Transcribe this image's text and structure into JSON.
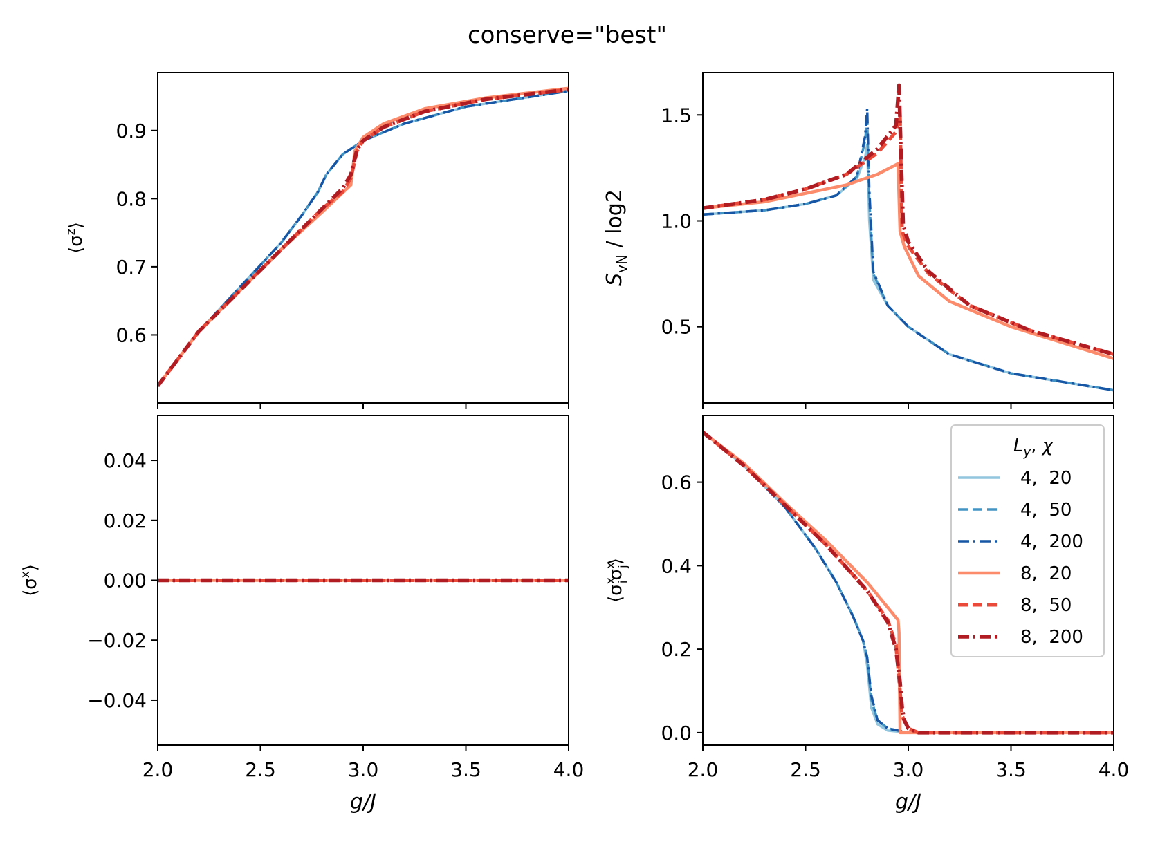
{
  "chart_data": {
    "type": "line",
    "title": "conserve=\"best\"",
    "colors": {
      "4, 20": "#92c5de",
      "4, 50": "#4393c3",
      "4, 200": "#1656a4",
      "8, 20": "#fb8b6b",
      "8, 50": "#ea4a3a",
      "8, 200": "#b01c22"
    },
    "legend": {
      "title_parts": [
        "L",
        "y",
        ", ",
        "χ"
      ],
      "placement": "inside, upper-right of bottom-right panel",
      "entries": [
        {
          "label": "4,  20",
          "key": "4, 20",
          "dash": "solid"
        },
        {
          "label": "4,  50",
          "key": "4, 50",
          "dash": "dashed"
        },
        {
          "label": "4,  200",
          "key": "4, 200",
          "dash": "dashdot"
        },
        {
          "label": "8,  20",
          "key": "8, 20",
          "dash": "solid"
        },
        {
          "label": "8,  50",
          "key": "8, 50",
          "dash": "dashed"
        },
        {
          "label": "8,  200",
          "key": "8, 200",
          "dash": "dashdot"
        }
      ]
    },
    "panels": [
      {
        "id": "sz",
        "ylabel_parts": [
          "⟨σ",
          "z",
          "⟩"
        ],
        "xlabel": "",
        "xlim": [
          2.0,
          4.0
        ],
        "ylim": [
          0.5,
          0.985
        ],
        "xticks": [
          2.0,
          2.5,
          3.0,
          3.5,
          4.0
        ],
        "xticklabels": [],
        "yticks": [
          0.6,
          0.7,
          0.8,
          0.9
        ],
        "yticklabels": [
          "0.6",
          "0.7",
          "0.8",
          "0.9"
        ],
        "series": [
          {
            "key": "4, 20",
            "x": [
              2.0,
              2.2,
              2.4,
              2.6,
              2.7,
              2.78,
              2.82,
              2.9,
              3.0,
              3.2,
              3.5,
              4.0
            ],
            "y": [
              0.525,
              0.605,
              0.67,
              0.735,
              0.775,
              0.81,
              0.835,
              0.865,
              0.885,
              0.91,
              0.935,
              0.958
            ]
          },
          {
            "key": "4, 50",
            "x": [
              2.0,
              2.2,
              2.4,
              2.6,
              2.7,
              2.78,
              2.82,
              2.9,
              3.0,
              3.2,
              3.5,
              4.0
            ],
            "y": [
              0.525,
              0.605,
              0.67,
              0.735,
              0.775,
              0.81,
              0.835,
              0.865,
              0.885,
              0.91,
              0.935,
              0.958
            ]
          },
          {
            "key": "4, 200",
            "x": [
              2.0,
              2.2,
              2.4,
              2.6,
              2.7,
              2.78,
              2.82,
              2.9,
              3.0,
              3.2,
              3.5,
              4.0
            ],
            "y": [
              0.525,
              0.605,
              0.67,
              0.735,
              0.775,
              0.81,
              0.835,
              0.865,
              0.885,
              0.91,
              0.935,
              0.958
            ]
          },
          {
            "key": "8, 20",
            "x": [
              2.0,
              2.2,
              2.4,
              2.6,
              2.8,
              2.94,
              2.96,
              3.0,
              3.1,
              3.3,
              3.6,
              4.0
            ],
            "y": [
              0.525,
              0.605,
              0.665,
              0.725,
              0.78,
              0.82,
              0.87,
              0.89,
              0.91,
              0.932,
              0.948,
              0.962
            ]
          },
          {
            "key": "8, 50",
            "x": [
              2.0,
              2.2,
              2.4,
              2.6,
              2.8,
              2.9,
              2.94,
              2.97,
              3.0,
              3.1,
              3.3,
              3.6,
              4.0
            ],
            "y": [
              0.525,
              0.605,
              0.665,
              0.725,
              0.785,
              0.81,
              0.83,
              0.87,
              0.885,
              0.905,
              0.928,
              0.946,
              0.96
            ]
          },
          {
            "key": "8, 200",
            "x": [
              2.0,
              2.2,
              2.4,
              2.6,
              2.8,
              2.9,
              2.94,
              2.97,
              3.0,
              3.1,
              3.3,
              3.6,
              4.0
            ],
            "y": [
              0.525,
              0.605,
              0.665,
              0.725,
              0.785,
              0.815,
              0.835,
              0.872,
              0.885,
              0.905,
              0.928,
              0.946,
              0.96
            ]
          }
        ]
      },
      {
        "id": "svn",
        "ylabel_parts": [
          "S",
          "vN",
          " / log2"
        ],
        "xlabel": "",
        "xlim": [
          2.0,
          4.0
        ],
        "ylim": [
          0.14,
          1.7
        ],
        "xticks": [
          2.0,
          2.5,
          3.0,
          3.5,
          4.0
        ],
        "xticklabels": [],
        "yticks": [
          0.5,
          1.0,
          1.5
        ],
        "yticklabels": [
          "0.5",
          "1.0",
          "1.5"
        ],
        "series": [
          {
            "key": "4, 20",
            "x": [
              2.0,
              2.3,
              2.5,
              2.65,
              2.75,
              2.79,
              2.8,
              2.81,
              2.83,
              2.9,
              3.0,
              3.2,
              3.5,
              4.0
            ],
            "y": [
              1.03,
              1.05,
              1.08,
              1.12,
              1.2,
              1.3,
              1.36,
              1.0,
              0.72,
              0.6,
              0.5,
              0.37,
              0.28,
              0.2
            ]
          },
          {
            "key": "4, 50",
            "x": [
              2.0,
              2.3,
              2.5,
              2.65,
              2.75,
              2.79,
              2.8,
              2.81,
              2.83,
              2.9,
              3.0,
              3.2,
              3.5,
              4.0
            ],
            "y": [
              1.03,
              1.05,
              1.08,
              1.12,
              1.21,
              1.38,
              1.48,
              1.1,
              0.75,
              0.6,
              0.5,
              0.37,
              0.28,
              0.2
            ]
          },
          {
            "key": "4, 200",
            "x": [
              2.0,
              2.3,
              2.5,
              2.65,
              2.75,
              2.79,
              2.8,
              2.81,
              2.83,
              2.9,
              3.0,
              3.2,
              3.5,
              4.0
            ],
            "y": [
              1.03,
              1.05,
              1.08,
              1.12,
              1.21,
              1.4,
              1.53,
              1.15,
              0.76,
              0.6,
              0.5,
              0.37,
              0.28,
              0.2
            ]
          },
          {
            "key": "8, 20",
            "x": [
              2.0,
              2.3,
              2.5,
              2.7,
              2.85,
              2.95,
              2.96,
              2.98,
              3.05,
              3.2,
              3.5,
              4.0
            ],
            "y": [
              1.06,
              1.09,
              1.13,
              1.17,
              1.22,
              1.27,
              0.95,
              0.88,
              0.74,
              0.62,
              0.5,
              0.35
            ]
          },
          {
            "key": "8, 50",
            "x": [
              2.0,
              2.3,
              2.5,
              2.7,
              2.85,
              2.94,
              2.96,
              2.97,
              3.0,
              3.1,
              3.3,
              3.6,
              4.0
            ],
            "y": [
              1.06,
              1.1,
              1.15,
              1.22,
              1.32,
              1.42,
              1.5,
              0.95,
              0.88,
              0.75,
              0.6,
              0.48,
              0.37
            ]
          },
          {
            "key": "8, 200",
            "x": [
              2.0,
              2.3,
              2.5,
              2.7,
              2.85,
              2.94,
              2.955,
              2.965,
              2.975,
              3.0,
              3.1,
              3.3,
              3.6,
              4.0
            ],
            "y": [
              1.06,
              1.1,
              1.15,
              1.22,
              1.34,
              1.45,
              1.64,
              1.3,
              0.98,
              0.9,
              0.76,
              0.6,
              0.48,
              0.37
            ]
          }
        ]
      },
      {
        "id": "sx",
        "ylabel_parts": [
          "⟨σ",
          "x",
          "⟩"
        ],
        "xlabel": "g/J",
        "xlim": [
          2.0,
          4.0
        ],
        "ylim": [
          -0.055,
          0.055
        ],
        "xticks": [
          2.0,
          2.5,
          3.0,
          3.5,
          4.0
        ],
        "xticklabels": [
          "2.0",
          "2.5",
          "3.0",
          "3.5",
          "4.0"
        ],
        "yticks": [
          -0.04,
          -0.02,
          0.0,
          0.02,
          0.04
        ],
        "yticklabels": [
          "−0.04",
          "−0.02",
          "0.00",
          "0.02",
          "0.04"
        ],
        "series": [
          {
            "key": "4, 20",
            "x": [
              2.0,
              4.0
            ],
            "y": [
              0.0,
              0.0
            ]
          },
          {
            "key": "4, 50",
            "x": [
              2.0,
              4.0
            ],
            "y": [
              0.0,
              0.0
            ]
          },
          {
            "key": "4, 200",
            "x": [
              2.0,
              4.0
            ],
            "y": [
              0.0,
              0.0
            ]
          },
          {
            "key": "8, 20",
            "x": [
              2.0,
              4.0
            ],
            "y": [
              0.0,
              0.0
            ]
          },
          {
            "key": "8, 50",
            "x": [
              2.0,
              4.0
            ],
            "y": [
              0.0,
              0.0
            ]
          },
          {
            "key": "8, 200",
            "x": [
              2.0,
              4.0
            ],
            "y": [
              0.0,
              0.0
            ]
          }
        ]
      },
      {
        "id": "corr",
        "ylabel_parts": [
          "⟨σ",
          "x",
          "i",
          "σ",
          "x",
          "j",
          "⟩"
        ],
        "xlabel": "g/J",
        "xlim": [
          2.0,
          4.0
        ],
        "ylim": [
          -0.03,
          0.76
        ],
        "xticks": [
          2.0,
          2.5,
          3.0,
          3.5,
          4.0
        ],
        "xticklabels": [
          "2.0",
          "2.5",
          "3.0",
          "3.5",
          "4.0"
        ],
        "yticks": [
          0.0,
          0.2,
          0.4,
          0.6
        ],
        "yticklabels": [
          "0.0",
          "0.2",
          "0.4",
          "0.6"
        ],
        "series": [
          {
            "key": "4, 20",
            "x": [
              2.0,
              2.2,
              2.4,
              2.55,
              2.65,
              2.73,
              2.78,
              2.8,
              2.82,
              2.85,
              2.9,
              3.0,
              4.0
            ],
            "y": [
              0.72,
              0.64,
              0.54,
              0.44,
              0.36,
              0.28,
              0.22,
              0.16,
              0.06,
              0.02,
              0.005,
              0.0,
              0.0
            ]
          },
          {
            "key": "4, 50",
            "x": [
              2.0,
              2.2,
              2.4,
              2.55,
              2.65,
              2.73,
              2.78,
              2.8,
              2.82,
              2.85,
              2.9,
              3.0,
              4.0
            ],
            "y": [
              0.72,
              0.64,
              0.54,
              0.44,
              0.36,
              0.28,
              0.22,
              0.18,
              0.08,
              0.03,
              0.01,
              0.0,
              0.0
            ]
          },
          {
            "key": "4, 200",
            "x": [
              2.0,
              2.2,
              2.4,
              2.55,
              2.65,
              2.73,
              2.78,
              2.8,
              2.82,
              2.85,
              2.9,
              3.0,
              4.0
            ],
            "y": [
              0.72,
              0.64,
              0.54,
              0.44,
              0.36,
              0.28,
              0.22,
              0.18,
              0.09,
              0.03,
              0.01,
              0.0,
              0.0
            ]
          },
          {
            "key": "8, 20",
            "x": [
              2.0,
              2.2,
              2.4,
              2.6,
              2.8,
              2.95,
              2.955,
              2.96,
              3.0,
              4.0
            ],
            "y": [
              0.72,
              0.645,
              0.55,
              0.46,
              0.36,
              0.27,
              0.24,
              0.0,
              0.0,
              0.0
            ]
          },
          {
            "key": "8, 50",
            "x": [
              2.0,
              2.2,
              2.4,
              2.6,
              2.8,
              2.9,
              2.94,
              2.96,
              2.97,
              3.0,
              3.05,
              4.0
            ],
            "y": [
              0.72,
              0.64,
              0.545,
              0.45,
              0.34,
              0.27,
              0.21,
              0.1,
              0.04,
              0.01,
              0.0,
              0.0
            ]
          },
          {
            "key": "8, 200",
            "x": [
              2.0,
              2.2,
              2.4,
              2.6,
              2.8,
              2.9,
              2.94,
              2.96,
              2.97,
              2.98,
              3.0,
              3.05,
              4.0
            ],
            "y": [
              0.72,
              0.64,
              0.545,
              0.45,
              0.34,
              0.265,
              0.2,
              0.12,
              0.06,
              0.03,
              0.01,
              0.0,
              0.0
            ]
          }
        ]
      }
    ]
  }
}
